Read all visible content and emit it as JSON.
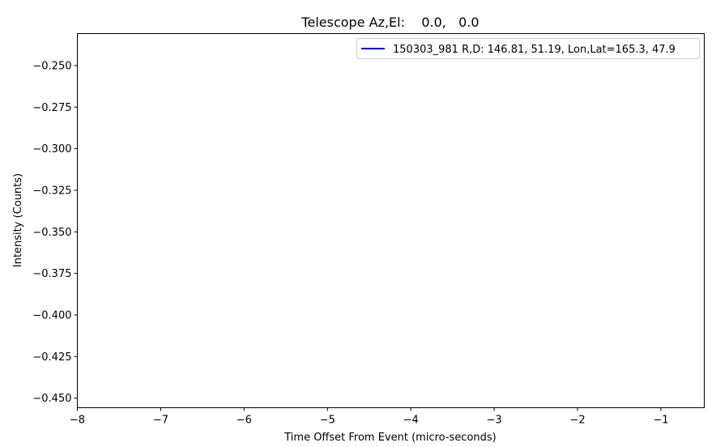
{
  "chart_data": {
    "type": "line",
    "title": "Telescope Az,El:    0.0,   0.0",
    "xlabel": "Time Offset From Event (micro-seconds)",
    "ylabel": "Intensity (Counts)",
    "xlim": [
      -8,
      -0.48
    ],
    "ylim": [
      -0.4558,
      -0.2308
    ],
    "x_ticks": [
      -8,
      -7,
      -6,
      -5,
      -4,
      -3,
      -2,
      -1
    ],
    "x_tick_labels": [
      "−8",
      "−7",
      "−6",
      "−5",
      "−4",
      "−3",
      "−2",
      "−1"
    ],
    "y_ticks": [
      -0.25,
      -0.275,
      -0.3,
      -0.325,
      -0.35,
      -0.375,
      -0.4,
      -0.425,
      -0.45
    ],
    "y_tick_labels": [
      "−0.250",
      "−0.275",
      "−0.300",
      "−0.325",
      "−0.350",
      "−0.375",
      "−0.400",
      "−0.425",
      "−0.450"
    ],
    "grid": false,
    "legend_position": "top-right",
    "series": [
      {
        "name": "150303_981 R,D: 146.81, 51.19, Lon,Lat=165.3, 47.9",
        "color": "#0000bf",
        "x": [],
        "y": []
      }
    ]
  }
}
